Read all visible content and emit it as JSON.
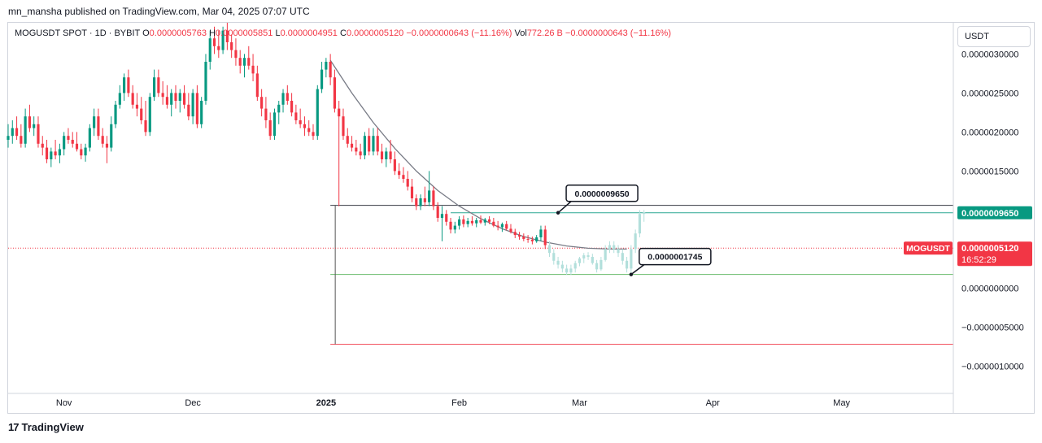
{
  "header": {
    "published": "mn_mansha published on TradingView.com, Mar 04, 2025 07:07 UTC"
  },
  "legend": {
    "symbol": "MOGUSDT SPOT · 1D · BYBIT",
    "o_label": "O",
    "o_value": "0.0000005763",
    "h_label": "H",
    "h_value": "0.0000005851",
    "l_label": "L",
    "l_value": "0.0000004951",
    "c_label": "C",
    "c_value": "0.0000005120",
    "change": "−0.0000000643 (−11.16%)",
    "vol_label": "Vol",
    "vol_value": "772.26 B",
    "vol_change": "−0.0000000643 (−11.16%)"
  },
  "currency_button": "USDT",
  "footer": {
    "brand": "TradingView",
    "logo_glyph": "17"
  },
  "colors": {
    "up": "#089981",
    "down": "#f23645",
    "projection": "#b2dfdb",
    "price_line": "#f23645",
    "neutral": "#131722"
  },
  "chart_data": {
    "type": "candlestick",
    "symbol": "MOGUSDT",
    "timeframe": "1D",
    "y_ticks": [
      "0.0000030000",
      "0.0000025000",
      "0.0000020000",
      "0.0000015000",
      "0.0000000000",
      "−0.0000005000",
      "−0.0000010000"
    ],
    "y_tick_values": [
      3.0,
      2.5,
      2.0,
      1.5,
      0.0,
      -0.5,
      -1.0
    ],
    "y_unit_scale": "e-6",
    "x_ticks": [
      "Nov",
      "Dec",
      "2025",
      "Feb",
      "Mar",
      "Apr",
      "May"
    ],
    "x_tick_days": [
      0,
      30,
      61,
      92,
      120,
      151,
      181
    ],
    "x_day0": "2024-11-01",
    "ylim": [
      -1.35,
      3.4
    ],
    "xlim": [
      -13,
      207
    ],
    "price_badge": {
      "label": "MOGUSDT",
      "value": "0.0000005120",
      "countdown": "16:52:29",
      "y": 0.512
    },
    "level_badge": {
      "value": "0.0000009650",
      "y": 0.965
    },
    "annotations": [
      {
        "text": "0.0000009650",
        "y": 0.965,
        "day": 115
      },
      {
        "text": "0.0000001745",
        "y": 0.1745,
        "day": 132
      }
    ],
    "levels": [
      {
        "name": "black-level",
        "y": 1.06,
        "from_day": 62,
        "to_day": 207
      },
      {
        "name": "teal-level",
        "y": 0.965,
        "from_day": 90,
        "to_day": 207
      },
      {
        "name": "green-level",
        "y": 0.1745,
        "from_day": 62,
        "to_day": 207
      },
      {
        "name": "red-level",
        "y": -0.72,
        "from_day": 62,
        "to_day": 207
      }
    ],
    "candles": [
      {
        "d": -13,
        "o": 1.9,
        "h": 2.1,
        "l": 1.8,
        "c": 1.95
      },
      {
        "d": -12,
        "o": 1.95,
        "h": 2.15,
        "l": 1.85,
        "c": 2.05
      },
      {
        "d": -11,
        "o": 2.05,
        "h": 2.2,
        "l": 1.9,
        "c": 1.95
      },
      {
        "d": -10,
        "o": 1.95,
        "h": 2.1,
        "l": 1.8,
        "c": 1.85
      },
      {
        "d": -9,
        "o": 1.85,
        "h": 2.3,
        "l": 1.8,
        "c": 2.2
      },
      {
        "d": -8,
        "o": 2.2,
        "h": 2.35,
        "l": 2.0,
        "c": 2.05
      },
      {
        "d": -7,
        "o": 2.05,
        "h": 2.2,
        "l": 1.95,
        "c": 2.1
      },
      {
        "d": -6,
        "o": 2.1,
        "h": 2.2,
        "l": 1.8,
        "c": 1.85
      },
      {
        "d": -5,
        "o": 1.85,
        "h": 1.95,
        "l": 1.7,
        "c": 1.8
      },
      {
        "d": -4,
        "o": 1.8,
        "h": 1.9,
        "l": 1.6,
        "c": 1.65
      },
      {
        "d": -3,
        "o": 1.65,
        "h": 1.8,
        "l": 1.55,
        "c": 1.75
      },
      {
        "d": -2,
        "o": 1.75,
        "h": 1.9,
        "l": 1.65,
        "c": 1.7
      },
      {
        "d": -1,
        "o": 1.7,
        "h": 1.85,
        "l": 1.6,
        "c": 1.78
      },
      {
        "d": 0,
        "o": 1.78,
        "h": 2.0,
        "l": 1.7,
        "c": 1.95
      },
      {
        "d": 1,
        "o": 1.95,
        "h": 2.05,
        "l": 1.85,
        "c": 1.9
      },
      {
        "d": 2,
        "o": 1.9,
        "h": 2.0,
        "l": 1.8,
        "c": 1.85
      },
      {
        "d": 3,
        "o": 1.85,
        "h": 2.0,
        "l": 1.75,
        "c": 1.78
      },
      {
        "d": 4,
        "o": 1.78,
        "h": 1.85,
        "l": 1.65,
        "c": 1.7
      },
      {
        "d": 5,
        "o": 1.7,
        "h": 1.85,
        "l": 1.62,
        "c": 1.8
      },
      {
        "d": 6,
        "o": 1.8,
        "h": 2.1,
        "l": 1.75,
        "c": 2.05
      },
      {
        "d": 7,
        "o": 2.05,
        "h": 2.3,
        "l": 1.95,
        "c": 2.2
      },
      {
        "d": 8,
        "o": 2.2,
        "h": 2.3,
        "l": 1.9,
        "c": 1.95
      },
      {
        "d": 9,
        "o": 1.95,
        "h": 2.05,
        "l": 1.8,
        "c": 1.85
      },
      {
        "d": 10,
        "o": 1.85,
        "h": 1.95,
        "l": 1.6,
        "c": 1.8
      },
      {
        "d": 11,
        "o": 1.8,
        "h": 2.2,
        "l": 1.75,
        "c": 2.1
      },
      {
        "d": 12,
        "o": 2.1,
        "h": 2.4,
        "l": 2.05,
        "c": 2.35
      },
      {
        "d": 13,
        "o": 2.35,
        "h": 2.6,
        "l": 2.3,
        "c": 2.5
      },
      {
        "d": 14,
        "o": 2.5,
        "h": 2.75,
        "l": 2.4,
        "c": 2.7
      },
      {
        "d": 15,
        "o": 2.7,
        "h": 2.8,
        "l": 2.45,
        "c": 2.5
      },
      {
        "d": 16,
        "o": 2.5,
        "h": 2.6,
        "l": 2.3,
        "c": 2.35
      },
      {
        "d": 17,
        "o": 2.35,
        "h": 2.5,
        "l": 2.2,
        "c": 2.3
      },
      {
        "d": 18,
        "o": 2.3,
        "h": 2.45,
        "l": 2.1,
        "c": 2.15
      },
      {
        "d": 19,
        "o": 2.15,
        "h": 2.4,
        "l": 1.95,
        "c": 2.0
      },
      {
        "d": 20,
        "o": 2.0,
        "h": 2.5,
        "l": 1.95,
        "c": 2.45
      },
      {
        "d": 21,
        "o": 2.45,
        "h": 2.8,
        "l": 2.4,
        "c": 2.7
      },
      {
        "d": 22,
        "o": 2.7,
        "h": 2.8,
        "l": 2.45,
        "c": 2.5
      },
      {
        "d": 23,
        "o": 2.5,
        "h": 2.65,
        "l": 2.35,
        "c": 2.45
      },
      {
        "d": 24,
        "o": 2.45,
        "h": 2.6,
        "l": 2.3,
        "c": 2.35
      },
      {
        "d": 25,
        "o": 2.35,
        "h": 2.55,
        "l": 2.2,
        "c": 2.5
      },
      {
        "d": 26,
        "o": 2.5,
        "h": 2.6,
        "l": 2.3,
        "c": 2.4
      },
      {
        "d": 27,
        "o": 2.4,
        "h": 2.55,
        "l": 2.25,
        "c": 2.5
      },
      {
        "d": 28,
        "o": 2.5,
        "h": 2.6,
        "l": 2.3,
        "c": 2.35
      },
      {
        "d": 29,
        "o": 2.35,
        "h": 2.5,
        "l": 2.15,
        "c": 2.2
      },
      {
        "d": 30,
        "o": 2.2,
        "h": 2.55,
        "l": 2.1,
        "c": 2.5
      },
      {
        "d": 31,
        "o": 2.5,
        "h": 2.6,
        "l": 2.05,
        "c": 2.1
      },
      {
        "d": 32,
        "o": 2.1,
        "h": 2.45,
        "l": 2.05,
        "c": 2.4
      },
      {
        "d": 33,
        "o": 2.4,
        "h": 3.0,
        "l": 2.35,
        "c": 2.9
      },
      {
        "d": 34,
        "o": 2.9,
        "h": 3.3,
        "l": 2.8,
        "c": 3.2
      },
      {
        "d": 35,
        "o": 3.2,
        "h": 3.35,
        "l": 3.0,
        "c": 3.1
      },
      {
        "d": 36,
        "o": 3.1,
        "h": 3.3,
        "l": 2.95,
        "c": 3.05
      },
      {
        "d": 37,
        "o": 3.05,
        "h": 3.35,
        "l": 3.0,
        "c": 3.3
      },
      {
        "d": 38,
        "o": 3.3,
        "h": 3.4,
        "l": 3.05,
        "c": 3.15
      },
      {
        "d": 39,
        "o": 3.15,
        "h": 3.25,
        "l": 2.95,
        "c": 3.05
      },
      {
        "d": 40,
        "o": 3.05,
        "h": 3.2,
        "l": 2.85,
        "c": 2.95
      },
      {
        "d": 41,
        "o": 2.95,
        "h": 3.05,
        "l": 2.75,
        "c": 2.85
      },
      {
        "d": 42,
        "o": 2.85,
        "h": 3.0,
        "l": 2.7,
        "c": 2.95
      },
      {
        "d": 43,
        "o": 2.95,
        "h": 3.1,
        "l": 2.8,
        "c": 2.85
      },
      {
        "d": 44,
        "o": 2.85,
        "h": 3.0,
        "l": 2.65,
        "c": 2.75
      },
      {
        "d": 45,
        "o": 2.75,
        "h": 2.85,
        "l": 2.4,
        "c": 2.45
      },
      {
        "d": 46,
        "o": 2.45,
        "h": 2.55,
        "l": 2.2,
        "c": 2.3
      },
      {
        "d": 47,
        "o": 2.3,
        "h": 2.45,
        "l": 2.05,
        "c": 2.15
      },
      {
        "d": 48,
        "o": 2.15,
        "h": 2.25,
        "l": 1.9,
        "c": 1.95
      },
      {
        "d": 49,
        "o": 1.95,
        "h": 2.3,
        "l": 1.9,
        "c": 2.25
      },
      {
        "d": 50,
        "o": 2.25,
        "h": 2.4,
        "l": 2.1,
        "c": 2.35
      },
      {
        "d": 51,
        "o": 2.35,
        "h": 2.55,
        "l": 2.25,
        "c": 2.5
      },
      {
        "d": 52,
        "o": 2.5,
        "h": 2.6,
        "l": 2.35,
        "c": 2.4
      },
      {
        "d": 53,
        "o": 2.4,
        "h": 2.5,
        "l": 2.2,
        "c": 2.25
      },
      {
        "d": 54,
        "o": 2.25,
        "h": 2.35,
        "l": 2.1,
        "c": 2.15
      },
      {
        "d": 55,
        "o": 2.15,
        "h": 2.3,
        "l": 2.05,
        "c": 2.1
      },
      {
        "d": 56,
        "o": 2.1,
        "h": 2.2,
        "l": 1.95,
        "c": 2.05
      },
      {
        "d": 57,
        "o": 2.05,
        "h": 2.15,
        "l": 1.95,
        "c": 2.0
      },
      {
        "d": 58,
        "o": 2.0,
        "h": 2.1,
        "l": 1.9,
        "c": 1.95
      },
      {
        "d": 59,
        "o": 1.95,
        "h": 2.6,
        "l": 1.9,
        "c": 2.55
      },
      {
        "d": 60,
        "o": 2.55,
        "h": 2.9,
        "l": 2.5,
        "c": 2.8
      },
      {
        "d": 61,
        "o": 2.8,
        "h": 2.95,
        "l": 2.7,
        "c": 2.9
      },
      {
        "d": 62,
        "o": 2.9,
        "h": 3.0,
        "l": 2.6,
        "c": 2.7
      },
      {
        "d": 63,
        "o": 2.7,
        "h": 2.8,
        "l": 2.25,
        "c": 2.3
      },
      {
        "d": 64,
        "o": 2.3,
        "h": 2.4,
        "l": 1.05,
        "c": 2.2
      },
      {
        "d": 65,
        "o": 2.2,
        "h": 2.3,
        "l": 1.9,
        "c": 1.95
      },
      {
        "d": 66,
        "o": 1.95,
        "h": 2.05,
        "l": 1.8,
        "c": 1.85
      },
      {
        "d": 67,
        "o": 1.85,
        "h": 1.95,
        "l": 1.75,
        "c": 1.8
      },
      {
        "d": 68,
        "o": 1.8,
        "h": 1.9,
        "l": 1.7,
        "c": 1.75
      },
      {
        "d": 69,
        "o": 1.75,
        "h": 1.85,
        "l": 1.65,
        "c": 1.7
      },
      {
        "d": 70,
        "o": 1.7,
        "h": 2.0,
        "l": 1.65,
        "c": 1.95
      },
      {
        "d": 71,
        "o": 1.95,
        "h": 2.05,
        "l": 1.7,
        "c": 1.75
      },
      {
        "d": 72,
        "o": 1.75,
        "h": 2.05,
        "l": 1.7,
        "c": 1.95
      },
      {
        "d": 73,
        "o": 1.95,
        "h": 2.05,
        "l": 1.7,
        "c": 1.75
      },
      {
        "d": 74,
        "o": 1.75,
        "h": 1.85,
        "l": 1.6,
        "c": 1.65
      },
      {
        "d": 75,
        "o": 1.65,
        "h": 1.8,
        "l": 1.55,
        "c": 1.75
      },
      {
        "d": 76,
        "o": 1.75,
        "h": 1.9,
        "l": 1.6,
        "c": 1.65
      },
      {
        "d": 77,
        "o": 1.65,
        "h": 1.75,
        "l": 1.45,
        "c": 1.5
      },
      {
        "d": 78,
        "o": 1.5,
        "h": 1.6,
        "l": 1.4,
        "c": 1.45
      },
      {
        "d": 79,
        "o": 1.45,
        "h": 1.55,
        "l": 1.35,
        "c": 1.4
      },
      {
        "d": 80,
        "o": 1.4,
        "h": 1.5,
        "l": 1.25,
        "c": 1.3
      },
      {
        "d": 81,
        "o": 1.3,
        "h": 1.4,
        "l": 1.1,
        "c": 1.15
      },
      {
        "d": 82,
        "o": 1.15,
        "h": 1.2,
        "l": 1.0,
        "c": 1.05
      },
      {
        "d": 83,
        "o": 1.05,
        "h": 1.2,
        "l": 1.0,
        "c": 1.15
      },
      {
        "d": 84,
        "o": 1.15,
        "h": 1.3,
        "l": 1.05,
        "c": 1.1
      },
      {
        "d": 85,
        "o": 1.1,
        "h": 1.5,
        "l": 1.05,
        "c": 1.25
      },
      {
        "d": 86,
        "o": 1.25,
        "h": 1.3,
        "l": 1.0,
        "c": 1.05
      },
      {
        "d": 87,
        "o": 1.05,
        "h": 1.1,
        "l": 0.85,
        "c": 0.9
      },
      {
        "d": 88,
        "o": 0.9,
        "h": 1.05,
        "l": 0.6,
        "c": 0.95
      },
      {
        "d": 89,
        "o": 0.95,
        "h": 1.0,
        "l": 0.8,
        "c": 0.85
      },
      {
        "d": 90,
        "o": 0.85,
        "h": 0.9,
        "l": 0.7,
        "c": 0.75
      },
      {
        "d": 91,
        "o": 0.75,
        "h": 0.85,
        "l": 0.7,
        "c": 0.8
      },
      {
        "d": 92,
        "o": 0.8,
        "h": 0.92,
        "l": 0.75,
        "c": 0.88
      },
      {
        "d": 93,
        "o": 0.88,
        "h": 0.93,
        "l": 0.78,
        "c": 0.82
      },
      {
        "d": 94,
        "o": 0.82,
        "h": 0.9,
        "l": 0.78,
        "c": 0.86
      },
      {
        "d": 95,
        "o": 0.86,
        "h": 0.92,
        "l": 0.8,
        "c": 0.83
      },
      {
        "d": 96,
        "o": 0.83,
        "h": 0.9,
        "l": 0.78,
        "c": 0.87
      },
      {
        "d": 97,
        "o": 0.87,
        "h": 0.93,
        "l": 0.82,
        "c": 0.84
      },
      {
        "d": 98,
        "o": 0.84,
        "h": 0.9,
        "l": 0.8,
        "c": 0.88
      },
      {
        "d": 99,
        "o": 0.88,
        "h": 0.92,
        "l": 0.82,
        "c": 0.85
      },
      {
        "d": 100,
        "o": 0.85,
        "h": 0.9,
        "l": 0.78,
        "c": 0.8
      },
      {
        "d": 101,
        "o": 0.8,
        "h": 0.86,
        "l": 0.74,
        "c": 0.78
      },
      {
        "d": 102,
        "o": 0.78,
        "h": 0.84,
        "l": 0.72,
        "c": 0.82
      },
      {
        "d": 103,
        "o": 0.82,
        "h": 0.86,
        "l": 0.74,
        "c": 0.76
      },
      {
        "d": 104,
        "o": 0.76,
        "h": 0.82,
        "l": 0.7,
        "c": 0.72
      },
      {
        "d": 105,
        "o": 0.72,
        "h": 0.76,
        "l": 0.64,
        "c": 0.68
      },
      {
        "d": 106,
        "o": 0.68,
        "h": 0.72,
        "l": 0.62,
        "c": 0.66
      },
      {
        "d": 107,
        "o": 0.66,
        "h": 0.7,
        "l": 0.6,
        "c": 0.63
      },
      {
        "d": 108,
        "o": 0.63,
        "h": 0.68,
        "l": 0.58,
        "c": 0.62
      },
      {
        "d": 109,
        "o": 0.62,
        "h": 0.66,
        "l": 0.56,
        "c": 0.6
      },
      {
        "d": 110,
        "o": 0.6,
        "h": 0.68,
        "l": 0.58,
        "c": 0.65
      },
      {
        "d": 111,
        "o": 0.65,
        "h": 0.8,
        "l": 0.6,
        "c": 0.75
      },
      {
        "d": 112,
        "o": 0.75,
        "h": 0.8,
        "l": 0.5,
        "c": 0.55
      }
    ],
    "projection": [
      {
        "d": 113,
        "o": 0.55,
        "h": 0.6,
        "l": 0.4,
        "c": 0.45
      },
      {
        "d": 114,
        "o": 0.45,
        "h": 0.5,
        "l": 0.3,
        "c": 0.35
      },
      {
        "d": 115,
        "o": 0.35,
        "h": 0.4,
        "l": 0.25,
        "c": 0.3
      },
      {
        "d": 116,
        "o": 0.3,
        "h": 0.35,
        "l": 0.2,
        "c": 0.25
      },
      {
        "d": 117,
        "o": 0.25,
        "h": 0.3,
        "l": 0.17,
        "c": 0.2
      },
      {
        "d": 118,
        "o": 0.2,
        "h": 0.3,
        "l": 0.17,
        "c": 0.25
      },
      {
        "d": 119,
        "o": 0.25,
        "h": 0.35,
        "l": 0.2,
        "c": 0.32
      },
      {
        "d": 120,
        "o": 0.32,
        "h": 0.4,
        "l": 0.28,
        "c": 0.38
      },
      {
        "d": 121,
        "o": 0.38,
        "h": 0.45,
        "l": 0.32,
        "c": 0.42
      },
      {
        "d": 122,
        "o": 0.42,
        "h": 0.46,
        "l": 0.36,
        "c": 0.4
      },
      {
        "d": 123,
        "o": 0.4,
        "h": 0.44,
        "l": 0.3,
        "c": 0.32
      },
      {
        "d": 124,
        "o": 0.32,
        "h": 0.36,
        "l": 0.2,
        "c": 0.24
      },
      {
        "d": 125,
        "o": 0.24,
        "h": 0.4,
        "l": 0.22,
        "c": 0.36
      },
      {
        "d": 126,
        "o": 0.36,
        "h": 0.55,
        "l": 0.34,
        "c": 0.5
      },
      {
        "d": 127,
        "o": 0.5,
        "h": 0.6,
        "l": 0.45,
        "c": 0.55
      },
      {
        "d": 128,
        "o": 0.55,
        "h": 0.6,
        "l": 0.45,
        "c": 0.5
      },
      {
        "d": 129,
        "o": 0.5,
        "h": 0.55,
        "l": 0.4,
        "c": 0.45
      },
      {
        "d": 130,
        "o": 0.45,
        "h": 0.5,
        "l": 0.3,
        "c": 0.35
      },
      {
        "d": 131,
        "o": 0.35,
        "h": 0.4,
        "l": 0.2,
        "c": 0.25
      },
      {
        "d": 132,
        "o": 0.25,
        "h": 0.55,
        "l": 0.18,
        "c": 0.5
      },
      {
        "d": 133,
        "o": 0.5,
        "h": 0.75,
        "l": 0.45,
        "c": 0.7
      },
      {
        "d": 134,
        "o": 0.7,
        "h": 1.0,
        "l": 0.65,
        "c": 0.95
      },
      {
        "d": 135,
        "o": 0.95,
        "h": 1.0,
        "l": 0.85,
        "c": 0.97
      }
    ],
    "curve": [
      {
        "d": 62,
        "y": 2.92
      },
      {
        "d": 67,
        "y": 2.5
      },
      {
        "d": 72,
        "y": 2.12
      },
      {
        "d": 77,
        "y": 1.79
      },
      {
        "d": 82,
        "y": 1.5
      },
      {
        "d": 87,
        "y": 1.25
      },
      {
        "d": 92,
        "y": 1.05
      },
      {
        "d": 97,
        "y": 0.89
      },
      {
        "d": 102,
        "y": 0.76
      },
      {
        "d": 107,
        "y": 0.66
      },
      {
        "d": 112,
        "y": 0.59
      },
      {
        "d": 117,
        "y": 0.54
      },
      {
        "d": 122,
        "y": 0.51
      },
      {
        "d": 127,
        "y": 0.5
      },
      {
        "d": 131,
        "y": 0.5
      }
    ],
    "vertical_line": {
      "day": 62,
      "from_y": 1.06,
      "to_y": -0.72
    }
  }
}
